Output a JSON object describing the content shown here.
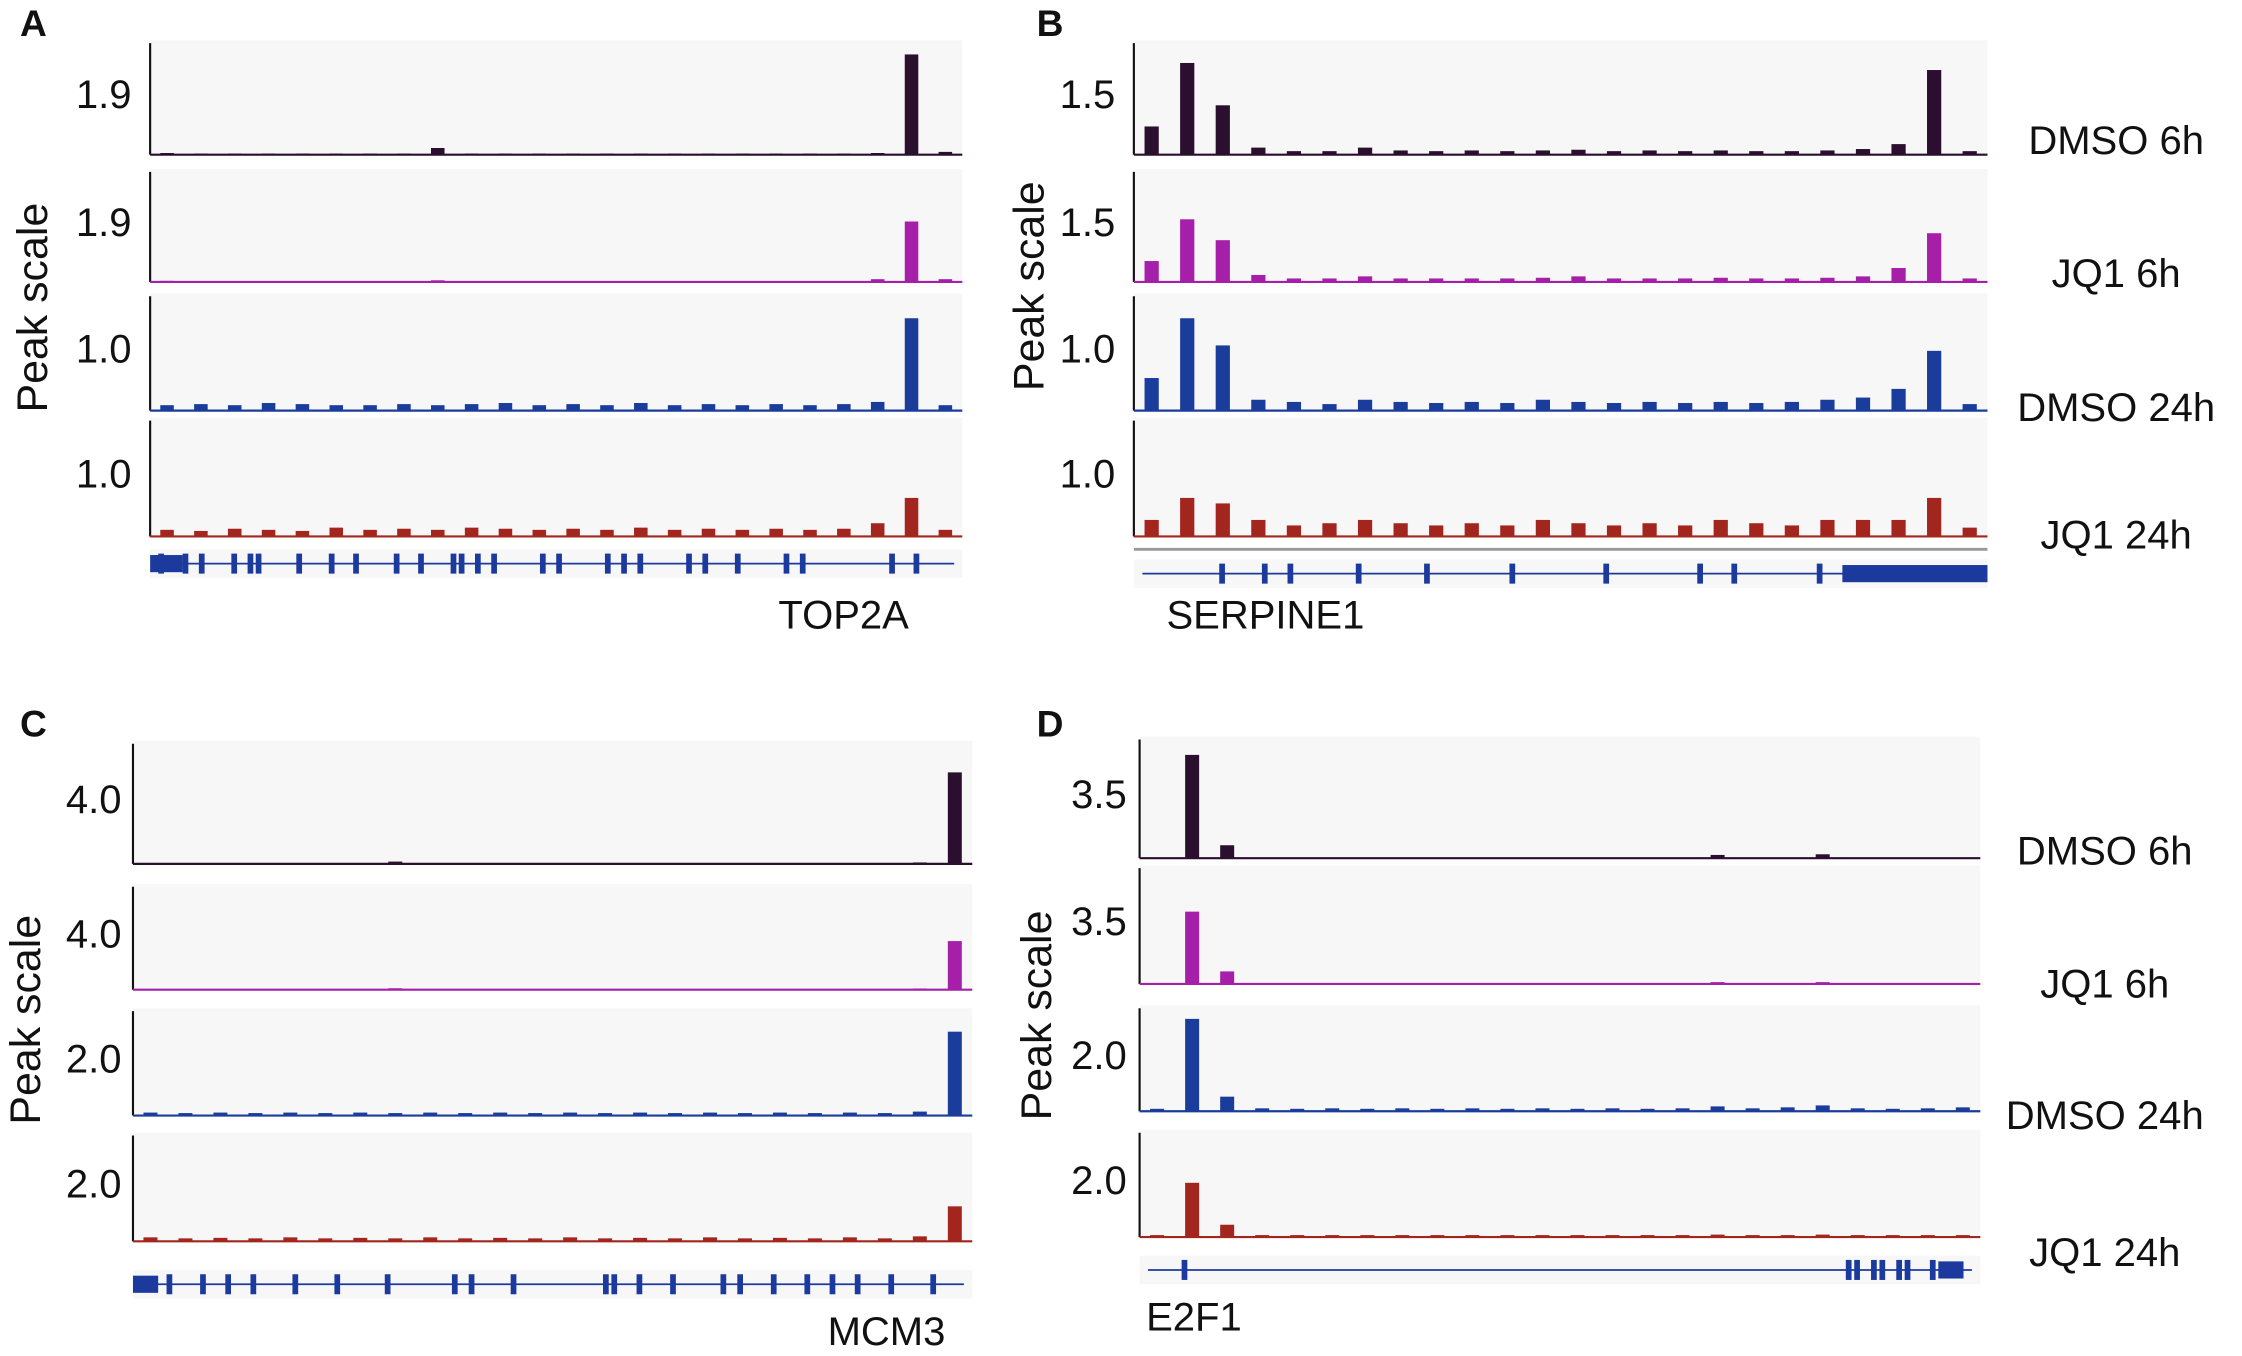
{
  "chart_data": [
    {
      "type": "bar",
      "label": "A",
      "ylabel": "Peak scale",
      "gene": "TOP2A",
      "series": [
        {
          "color": "#2b0f2e",
          "scale_label": "1.9",
          "ylim": [
            0,
            1.9
          ],
          "values": [
            0.03,
            0.02,
            0.02,
            0.02,
            0.02,
            0.02,
            0.02,
            0.02,
            0.12,
            0.02,
            0.02,
            0.02,
            0.02,
            0.02,
            0.02,
            0.02,
            0.02,
            0.02,
            0.02,
            0.02,
            0.02,
            0.03,
            1.8,
            0.05
          ]
        },
        {
          "color": "#a61fa8",
          "scale_label": "1.9",
          "ylim": [
            0,
            1.9
          ],
          "values": [
            0.02,
            0.01,
            0.01,
            0.01,
            0.01,
            0.01,
            0.01,
            0.01,
            0.03,
            0.01,
            0.01,
            0.01,
            0.01,
            0.01,
            0.01,
            0.01,
            0.01,
            0.01,
            0.01,
            0.01,
            0.01,
            0.05,
            1.1,
            0.05
          ]
        },
        {
          "color": "#1a3d9c",
          "scale_label": "1.0",
          "ylim": [
            0,
            1.0
          ],
          "values": [
            0.05,
            0.06,
            0.05,
            0.07,
            0.06,
            0.05,
            0.05,
            0.06,
            0.05,
            0.06,
            0.07,
            0.05,
            0.06,
            0.05,
            0.07,
            0.05,
            0.06,
            0.05,
            0.06,
            0.05,
            0.06,
            0.08,
            0.85,
            0.05
          ]
        },
        {
          "color": "#a3261e",
          "scale_label": "1.0",
          "ylim": [
            0,
            1.0
          ],
          "values": [
            0.06,
            0.05,
            0.07,
            0.06,
            0.05,
            0.08,
            0.06,
            0.07,
            0.06,
            0.08,
            0.07,
            0.06,
            0.07,
            0.06,
            0.08,
            0.06,
            0.07,
            0.06,
            0.07,
            0.06,
            0.07,
            0.12,
            0.35,
            0.06
          ]
        }
      ]
    },
    {
      "type": "bar",
      "label": "B",
      "ylabel": "Peak scale",
      "gene": "SERPINE1",
      "series": [
        {
          "name": "DMSO 6h",
          "color": "#2b0f2e",
          "scale_label": "1.5",
          "ylim": [
            0,
            1.5
          ],
          "values": [
            0.4,
            1.3,
            0.7,
            0.1,
            0.05,
            0.05,
            0.1,
            0.06,
            0.05,
            0.06,
            0.05,
            0.06,
            0.07,
            0.05,
            0.06,
            0.05,
            0.06,
            0.05,
            0.05,
            0.06,
            0.08,
            0.15,
            1.2,
            0.05
          ]
        },
        {
          "name": "JQ1 6h",
          "color": "#a61fa8",
          "scale_label": "1.5",
          "ylim": [
            0,
            1.5
          ],
          "values": [
            0.3,
            0.9,
            0.6,
            0.1,
            0.05,
            0.05,
            0.08,
            0.05,
            0.05,
            0.05,
            0.05,
            0.06,
            0.08,
            0.05,
            0.05,
            0.05,
            0.06,
            0.05,
            0.05,
            0.06,
            0.08,
            0.2,
            0.7,
            0.05
          ]
        },
        {
          "name": "DMSO 24h",
          "color": "#1a3d9c",
          "scale_label": "1.0",
          "ylim": [
            0,
            1.0
          ],
          "values": [
            0.3,
            0.85,
            0.6,
            0.1,
            0.08,
            0.06,
            0.1,
            0.08,
            0.07,
            0.08,
            0.07,
            0.1,
            0.08,
            0.07,
            0.08,
            0.07,
            0.08,
            0.07,
            0.08,
            0.1,
            0.12,
            0.2,
            0.55,
            0.06
          ]
        },
        {
          "name": "JQ1 24h",
          "color": "#a3261e",
          "scale_label": "1.0",
          "ylim": [
            0,
            1.0
          ],
          "values": [
            0.15,
            0.35,
            0.3,
            0.15,
            0.1,
            0.12,
            0.15,
            0.12,
            0.1,
            0.12,
            0.1,
            0.15,
            0.12,
            0.1,
            0.12,
            0.1,
            0.15,
            0.12,
            0.1,
            0.15,
            0.15,
            0.15,
            0.35,
            0.08
          ]
        }
      ]
    },
    {
      "type": "bar",
      "label": "C",
      "ylabel": "Peak scale",
      "gene": "MCM3",
      "series": [
        {
          "color": "#2b0f2e",
          "scale_label": "4.0",
          "ylim": [
            0,
            4.0
          ],
          "values": [
            0.03,
            0.02,
            0.02,
            0.02,
            0.02,
            0.02,
            0.03,
            0.08,
            0.02,
            0.02,
            0.02,
            0.02,
            0.02,
            0.02,
            0.02,
            0.02,
            0.02,
            0.02,
            0.02,
            0.02,
            0.02,
            0.02,
            0.05,
            3.2
          ]
        },
        {
          "color": "#a61fa8",
          "scale_label": "4.0",
          "ylim": [
            0,
            4.0
          ],
          "values": [
            0.02,
            0.02,
            0.02,
            0.02,
            0.02,
            0.02,
            0.02,
            0.06,
            0.02,
            0.02,
            0.02,
            0.02,
            0.02,
            0.02,
            0.02,
            0.02,
            0.02,
            0.02,
            0.02,
            0.02,
            0.02,
            0.02,
            0.05,
            2.0
          ]
        },
        {
          "color": "#1a3d9c",
          "scale_label": "2.0",
          "ylim": [
            0,
            2.0
          ],
          "values": [
            0.06,
            0.05,
            0.06,
            0.05,
            0.06,
            0.05,
            0.06,
            0.05,
            0.06,
            0.05,
            0.06,
            0.05,
            0.06,
            0.05,
            0.06,
            0.05,
            0.06,
            0.05,
            0.06,
            0.05,
            0.06,
            0.05,
            0.08,
            1.7
          ]
        },
        {
          "color": "#a3261e",
          "scale_label": "2.0",
          "ylim": [
            0,
            2.0
          ],
          "values": [
            0.08,
            0.06,
            0.07,
            0.06,
            0.08,
            0.06,
            0.07,
            0.06,
            0.08,
            0.06,
            0.07,
            0.06,
            0.08,
            0.06,
            0.07,
            0.06,
            0.08,
            0.06,
            0.07,
            0.06,
            0.08,
            0.06,
            0.1,
            0.7
          ]
        }
      ]
    },
    {
      "type": "bar",
      "label": "D",
      "ylabel": "Peak scale",
      "gene": "E2F1",
      "series": [
        {
          "name": "DMSO 6h",
          "color": "#2b0f2e",
          "scale_label": "3.5",
          "ylim": [
            0,
            3.5
          ],
          "values": [
            0.02,
            3.2,
            0.4,
            0.02,
            0.02,
            0.02,
            0.02,
            0.02,
            0.02,
            0.02,
            0.02,
            0.02,
            0.02,
            0.02,
            0.02,
            0.02,
            0.1,
            0.02,
            0.02,
            0.12,
            0.02,
            0.02,
            0.02,
            0.02
          ]
        },
        {
          "name": "JQ1 6h",
          "color": "#a61fa8",
          "scale_label": "3.5",
          "ylim": [
            0,
            3.5
          ],
          "values": [
            0.02,
            2.3,
            0.4,
            0.02,
            0.02,
            0.02,
            0.02,
            0.02,
            0.02,
            0.02,
            0.02,
            0.02,
            0.02,
            0.02,
            0.02,
            0.02,
            0.06,
            0.02,
            0.02,
            0.06,
            0.02,
            0.02,
            0.02,
            0.02
          ]
        },
        {
          "name": "DMSO 24h",
          "color": "#1a3d9c",
          "scale_label": "2.0",
          "ylim": [
            0,
            2.0
          ],
          "values": [
            0.05,
            1.9,
            0.3,
            0.06,
            0.05,
            0.06,
            0.05,
            0.06,
            0.05,
            0.06,
            0.05,
            0.06,
            0.05,
            0.06,
            0.05,
            0.06,
            0.1,
            0.06,
            0.08,
            0.12,
            0.06,
            0.05,
            0.06,
            0.08
          ]
        },
        {
          "name": "JQ1 24h",
          "color": "#a3261e",
          "scale_label": "2.0",
          "ylim": [
            0,
            2.0
          ],
          "values": [
            0.04,
            1.1,
            0.25,
            0.04,
            0.04,
            0.04,
            0.04,
            0.04,
            0.04,
            0.04,
            0.04,
            0.04,
            0.04,
            0.04,
            0.04,
            0.04,
            0.05,
            0.04,
            0.04,
            0.05,
            0.04,
            0.04,
            0.04,
            0.04
          ]
        }
      ]
    }
  ]
}
